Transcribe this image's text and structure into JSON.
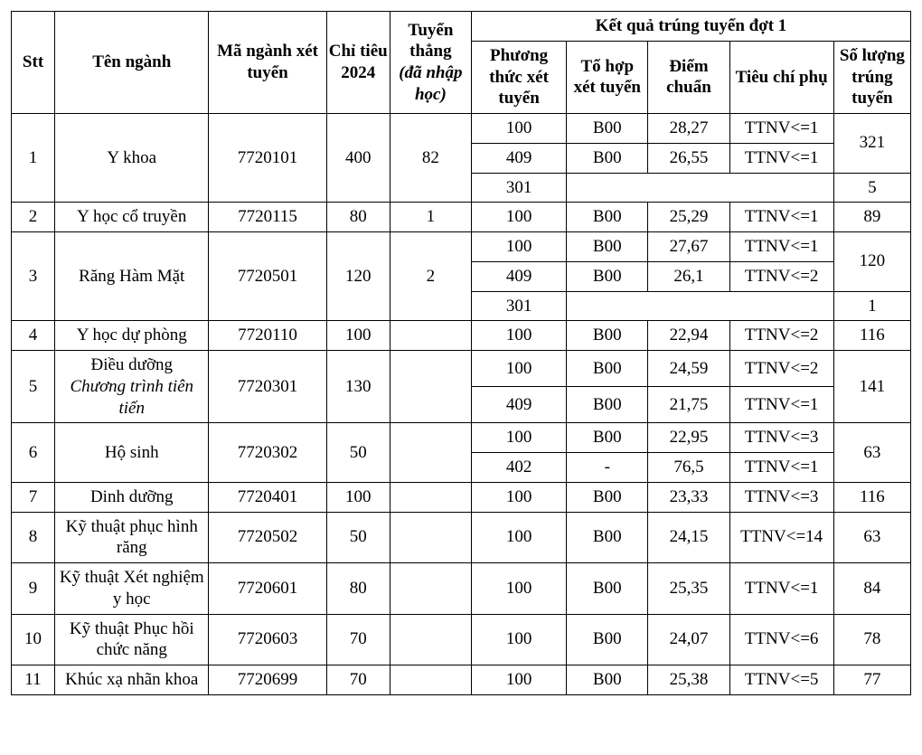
{
  "headers": {
    "stt": "Stt",
    "ten_nganh": "Tên ngành",
    "ma_nganh": "Mã ngành xét tuyển",
    "chi_tieu": "Chỉ tiêu 2024",
    "tuyen_thang_main": "Tuyển thẳng",
    "tuyen_thang_sub": "(đã nhập học)",
    "ket_qua": "Kết quả trúng tuyển đợt 1",
    "phuong_thuc": "Phương thức xét tuyển",
    "to_hop": "Tổ hợp xét tuyển",
    "diem_chuan": "Điểm chuẩn",
    "tieu_chi": "Tiêu chí phụ",
    "so_luong": "Số lượng trúng tuyển"
  },
  "rows": [
    {
      "stt": "1",
      "ten": "Y khoa",
      "ma": "7720101",
      "chi": "400",
      "tt": "82",
      "sub": [
        {
          "pt": "100",
          "th": "B00",
          "diem": "28,27",
          "tc": "TTNV<=1"
        },
        {
          "pt": "409",
          "th": "B00",
          "diem": "26,55",
          "tc": "TTNV<=1"
        },
        {
          "pt": "301",
          "th": "",
          "diem": "",
          "tc": ""
        }
      ],
      "sl": [
        "321",
        "5"
      ]
    },
    {
      "stt": "2",
      "ten": "Y học cổ truyền",
      "ma": "7720115",
      "chi": "80",
      "tt": "1",
      "sub": [
        {
          "pt": "100",
          "th": "B00",
          "diem": "25,29",
          "tc": "TTNV<=1"
        }
      ],
      "sl": [
        "89"
      ]
    },
    {
      "stt": "3",
      "ten": "Răng Hàm Mặt",
      "ma": "7720501",
      "chi": "120",
      "tt": "2",
      "sub": [
        {
          "pt": "100",
          "th": "B00",
          "diem": "27,67",
          "tc": "TTNV<=1"
        },
        {
          "pt": "409",
          "th": "B00",
          "diem": "26,1",
          "tc": "TTNV<=2"
        },
        {
          "pt": "301",
          "th": "",
          "diem": "",
          "tc": ""
        }
      ],
      "sl": [
        "120",
        "1"
      ]
    },
    {
      "stt": "4",
      "ten": "Y học dự phòng",
      "ma": "7720110",
      "chi": "100",
      "tt": "",
      "sub": [
        {
          "pt": "100",
          "th": "B00",
          "diem": "22,94",
          "tc": "TTNV<=2"
        }
      ],
      "sl": [
        "116"
      ]
    },
    {
      "stt": "5",
      "ten_line1": "Điều dưỡng",
      "ten_line2": "Chương trình tiên tiến",
      "ma": "7720301",
      "chi": "130",
      "tt": "",
      "sub": [
        {
          "pt": "100",
          "th": "B00",
          "diem": "24,59",
          "tc": "TTNV<=2"
        },
        {
          "pt": "409",
          "th": "B00",
          "diem": "21,75",
          "tc": "TTNV<=1"
        }
      ],
      "sl": [
        "141"
      ]
    },
    {
      "stt": "6",
      "ten": "Hộ sinh",
      "ma": "7720302",
      "chi": "50",
      "tt": "",
      "sub": [
        {
          "pt": "100",
          "th": "B00",
          "diem": "22,95",
          "tc": "TTNV<=3"
        },
        {
          "pt": "402",
          "th": "-",
          "diem": "76,5",
          "tc": "TTNV<=1"
        }
      ],
      "sl": [
        "63"
      ]
    },
    {
      "stt": "7",
      "ten": "Dinh dưỡng",
      "ma": "7720401",
      "chi": "100",
      "tt": "",
      "sub": [
        {
          "pt": "100",
          "th": "B00",
          "diem": "23,33",
          "tc": "TTNV<=3"
        }
      ],
      "sl": [
        "116"
      ]
    },
    {
      "stt": "8",
      "ten": "Kỹ thuật phục hình răng",
      "ma": "7720502",
      "chi": "50",
      "tt": "",
      "sub": [
        {
          "pt": "100",
          "th": "B00",
          "diem": "24,15",
          "tc": "TTNV<=14"
        }
      ],
      "sl": [
        "63"
      ]
    },
    {
      "stt": "9",
      "ten": "Kỹ thuật Xét nghiệm y học",
      "ma": "7720601",
      "chi": "80",
      "tt": "",
      "sub": [
        {
          "pt": "100",
          "th": "B00",
          "diem": "25,35",
          "tc": "TTNV<=1"
        }
      ],
      "sl": [
        "84"
      ]
    },
    {
      "stt": "10",
      "ten": "Kỹ thuật Phục hồi chức năng",
      "ma": "7720603",
      "chi": "70",
      "tt": "",
      "sub": [
        {
          "pt": "100",
          "th": "B00",
          "diem": "24,07",
          "tc": "TTNV<=6"
        }
      ],
      "sl": [
        "78"
      ]
    },
    {
      "stt": "11",
      "ten": "Khúc xạ nhãn khoa",
      "ma": "7720699",
      "chi": "70",
      "tt": "",
      "sub": [
        {
          "pt": "100",
          "th": "B00",
          "diem": "25,38",
          "tc": "TTNV<=5"
        }
      ],
      "sl": [
        "77"
      ]
    }
  ]
}
